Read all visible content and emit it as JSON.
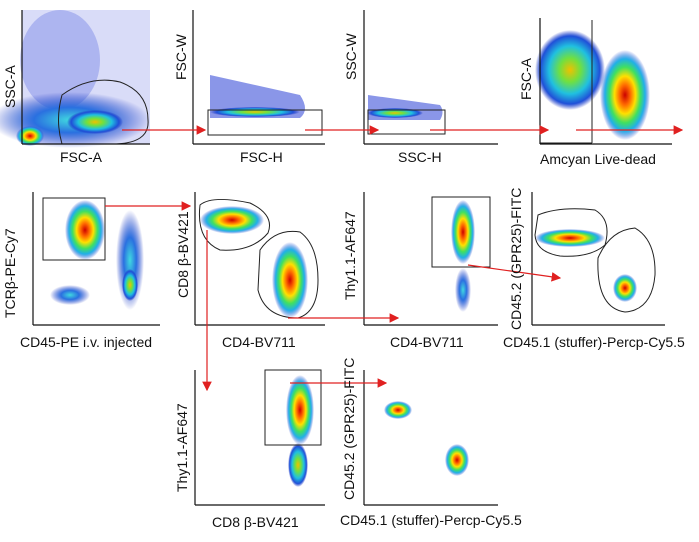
{
  "panels": [
    {
      "id": "p1",
      "xlabel": "FSC-A",
      "ylabel": "SSC-A"
    },
    {
      "id": "p2",
      "xlabel": "FSC-H",
      "ylabel": "FSC-W"
    },
    {
      "id": "p3",
      "xlabel": "SSC-H",
      "ylabel": "SSC-W"
    },
    {
      "id": "p4",
      "xlabel": "Amcyan Live-dead",
      "ylabel": "FSC-A"
    },
    {
      "id": "p5",
      "xlabel": "CD45-PE i.v. injected",
      "ylabel": "TCRβ-PE-Cy7"
    },
    {
      "id": "p6",
      "xlabel": "CD4-BV711",
      "ylabel": "CD8 β-BV421"
    },
    {
      "id": "p7",
      "xlabel": "CD4-BV711",
      "ylabel": "Thy1.1-AF647"
    },
    {
      "id": "p8",
      "xlabel": "CD45.1 (stuffer)-Percp-Cy5.5",
      "ylabel": "CD45.2 (GPR25)-FITC"
    },
    {
      "id": "p9",
      "xlabel": "CD8 β-BV421",
      "ylabel": "Thy1.1-AF647"
    },
    {
      "id": "p10",
      "xlabel": "CD45.1 (stuffer)-Percp-Cy5.5",
      "ylabel": "CD45.2 (GPR25)-FITC"
    }
  ],
  "colors": {
    "axis": "#111111",
    "gate": "#222222",
    "arrow": "#e02020"
  }
}
